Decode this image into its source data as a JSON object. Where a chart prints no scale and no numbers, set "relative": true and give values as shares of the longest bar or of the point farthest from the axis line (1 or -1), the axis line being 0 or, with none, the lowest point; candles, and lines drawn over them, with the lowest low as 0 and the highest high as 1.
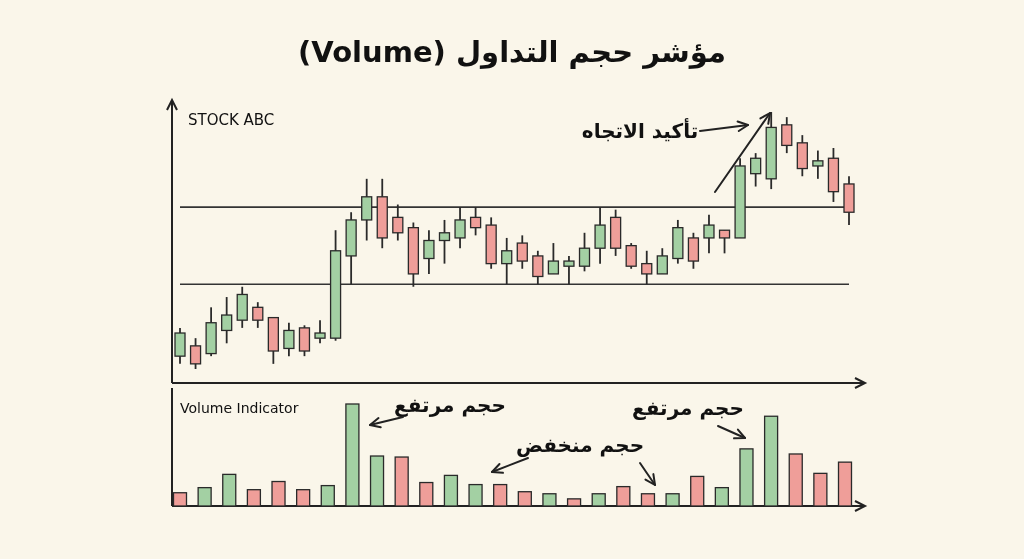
{
  "chart_data": [
    {
      "type": "candlestick",
      "title": "مؤشر حجم التداول (Volume)",
      "subtitle": "STOCK ABC",
      "relative": true,
      "categories": [
        null,
        null,
        null,
        null,
        null,
        null,
        null,
        null,
        null,
        null,
        null,
        null,
        null,
        null,
        null,
        null,
        null,
        null,
        null,
        null,
        null,
        null,
        null,
        null,
        null,
        null,
        null,
        null,
        null,
        null,
        null,
        null,
        null,
        null,
        null,
        null,
        null,
        null,
        null,
        null,
        null,
        null,
        null,
        null
      ],
      "ohlc": [
        [
          0.05,
          0.16,
          0.02,
          0.14
        ],
        [
          0.09,
          0.12,
          0,
          0.02
        ],
        [
          0.06,
          0.24,
          0.05,
          0.18
        ],
        [
          0.15,
          0.28,
          0.1,
          0.21
        ],
        [
          0.19,
          0.32,
          0.16,
          0.29
        ],
        [
          0.24,
          0.26,
          0.16,
          0.19
        ],
        [
          0.2,
          0.2,
          0.02,
          0.07
        ],
        [
          0.08,
          0.18,
          0.05,
          0.15
        ],
        [
          0.16,
          0.17,
          0.05,
          0.07
        ],
        [
          0.12,
          0.19,
          0.1,
          0.14
        ],
        [
          0.12,
          0.54,
          0.11,
          0.46
        ],
        [
          0.44,
          0.61,
          0.33,
          0.58
        ],
        [
          0.58,
          0.74,
          0.5,
          0.67
        ],
        [
          0.67,
          0.74,
          0.47,
          0.51
        ],
        [
          0.59,
          0.64,
          0.5,
          0.53
        ],
        [
          0.55,
          0.57,
          0.32,
          0.37
        ],
        [
          0.43,
          0.54,
          0.37,
          0.5
        ],
        [
          0.5,
          0.58,
          0.41,
          0.53
        ],
        [
          0.51,
          0.63,
          0.47,
          0.58
        ],
        [
          0.59,
          0.63,
          0.52,
          0.55
        ],
        [
          0.56,
          0.59,
          0.39,
          0.41
        ],
        [
          0.41,
          0.51,
          0.33,
          0.46
        ],
        [
          0.49,
          0.52,
          0.39,
          0.42
        ],
        [
          0.44,
          0.46,
          0.33,
          0.36
        ],
        [
          0.37,
          0.49,
          0.37,
          0.42
        ],
        [
          0.4,
          0.44,
          0.33,
          0.42
        ],
        [
          0.4,
          0.53,
          0.38,
          0.47
        ],
        [
          0.47,
          0.63,
          0.41,
          0.56
        ],
        [
          0.59,
          0.62,
          0.44,
          0.47
        ],
        [
          0.48,
          0.49,
          0.39,
          0.4
        ],
        [
          0.41,
          0.46,
          0.33,
          0.37
        ],
        [
          0.37,
          0.47,
          0.37,
          0.44
        ],
        [
          0.43,
          0.58,
          0.41,
          0.55
        ],
        [
          0.51,
          0.53,
          0.39,
          0.42
        ],
        [
          0.51,
          0.6,
          0.45,
          0.56
        ],
        [
          0.54,
          0.54,
          0.45,
          0.51
        ],
        [
          0.51,
          0.82,
          0.51,
          0.79
        ],
        [
          0.76,
          0.84,
          0.71,
          0.82
        ],
        [
          0.74,
          1,
          0.7,
          0.94
        ],
        [
          0.95,
          0.98,
          0.84,
          0.87
        ],
        [
          0.88,
          0.91,
          0.75,
          0.78
        ],
        [
          0.79,
          0.85,
          0.74,
          0.81
        ],
        [
          0.82,
          0.86,
          0.65,
          0.69
        ],
        [
          0.72,
          0.75,
          0.56,
          0.61
        ]
      ],
      "colors": [
        "#a3d0a3",
        "#ef9e99",
        "#a3d0a3",
        "#a3d0a3",
        "#a3d0a3",
        "#ef9e99",
        "#ef9e99",
        "#a3d0a3",
        "#ef9e99",
        "#a3d0a3",
        "#a3d0a3",
        "#a3d0a3",
        "#a3d0a3",
        "#ef9e99",
        "#ef9e99",
        "#ef9e99",
        "#a3d0a3",
        "#a3d0a3",
        "#a3d0a3",
        "#ef9e99",
        "#ef9e99",
        "#a3d0a3",
        "#ef9e99",
        "#ef9e99",
        "#a3d0a3",
        "#a3d0a3",
        "#a3d0a3",
        "#a3d0a3",
        "#ef9e99",
        "#ef9e99",
        "#ef9e99",
        "#a3d0a3",
        "#a3d0a3",
        "#ef9e99",
        "#a3d0a3",
        "#ef9e99",
        "#a3d0a3",
        "#a3d0a3",
        "#a3d0a3",
        "#ef9e99",
        "#ef9e99",
        "#a3d0a3",
        "#ef9e99",
        "#ef9e99"
      ],
      "ref_lines": [
        {
          "axis": "y",
          "value": 0.63
        },
        {
          "axis": "y",
          "value": 0.33
        }
      ],
      "annotations": [
        "تأكيد الاتجاه"
      ]
    },
    {
      "type": "bar",
      "title": "Volume Indicator",
      "relative": true,
      "categories": [
        null,
        null,
        null,
        null,
        null,
        null,
        null,
        null,
        null,
        null,
        null,
        null,
        null,
        null,
        null,
        null,
        null,
        null,
        null,
        null,
        null,
        null,
        null,
        null,
        null,
        null,
        null,
        null
      ],
      "values": [
        0.13,
        0.18,
        0.31,
        0.16,
        0.24,
        0.16,
        0.2,
        1,
        0.49,
        0.48,
        0.23,
        0.3,
        0.21,
        0.21,
        0.14,
        0.12,
        0.07,
        0.12,
        0.19,
        0.12,
        0.12,
        0.29,
        0.18,
        0.56,
        0.88,
        0.51,
        0.32,
        0.43
      ],
      "colors": [
        "#ef9e99",
        "#a3d0a3",
        "#a3d0a3",
        "#ef9e99",
        "#ef9e99",
        "#ef9e99",
        "#a3d0a3",
        "#a3d0a3",
        "#a3d0a3",
        "#ef9e99",
        "#ef9e99",
        "#a3d0a3",
        "#a3d0a3",
        "#ef9e99",
        "#ef9e99",
        "#a3d0a3",
        "#ef9e99",
        "#a3d0a3",
        "#ef9e99",
        "#ef9e99",
        "#a3d0a3",
        "#ef9e99",
        "#a3d0a3",
        "#a3d0a3",
        "#a3d0a3",
        "#ef9e99",
        "#ef9e99",
        "#ef9e99"
      ],
      "annotations": [
        "حجم مرتفع",
        "حجم منخفض",
        "حجم مرتفع"
      ]
    }
  ]
}
